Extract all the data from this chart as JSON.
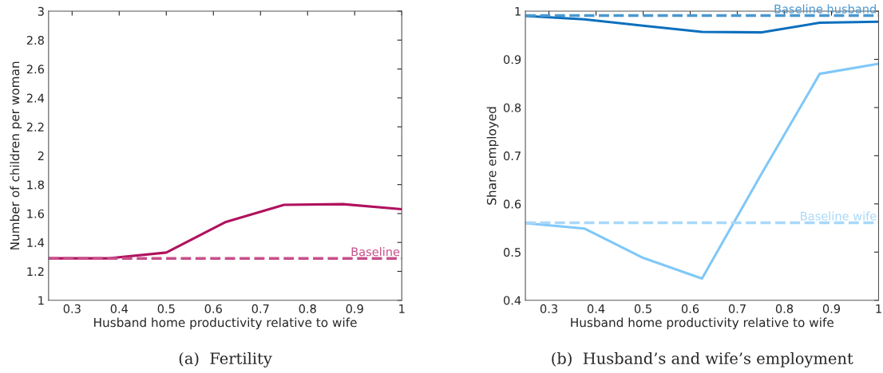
{
  "chart_data": [
    {
      "type": "line",
      "title": "(a)  Fertility",
      "xlabel": "Husband home productivity relative to wife",
      "ylabel": "Number of children per woman",
      "x": [
        0.25,
        0.375,
        0.5,
        0.625,
        0.75,
        0.875,
        1.0
      ],
      "series": [
        {
          "color": "#b0125e",
          "values": [
            1.29,
            1.29,
            1.33,
            1.54,
            1.66,
            1.665,
            1.63
          ]
        }
      ],
      "ref_lines": [
        {
          "axis": "y",
          "value": 1.29,
          "label": "Baseline",
          "color": "#c8508a",
          "line_style": "dashed"
        }
      ],
      "xlim": [
        0.25,
        1
      ],
      "xticks": [
        0.3,
        0.4,
        0.5,
        0.6,
        0.7,
        0.8,
        0.9,
        1
      ],
      "ylim": [
        1,
        3
      ],
      "yticks": [
        1,
        1.2,
        1.4,
        1.6,
        1.8,
        2,
        2.2,
        2.4,
        2.6,
        2.8,
        3
      ],
      "grid": false,
      "legend": false,
      "line_style": "solid",
      "marker": "none"
    },
    {
      "type": "line",
      "title": "(b)  Husband’s and wife’s employment",
      "xlabel": "Husband home productivity relative to wife",
      "ylabel": "Share employed",
      "x": [
        0.25,
        0.375,
        0.5,
        0.625,
        0.75,
        0.875,
        1.0
      ],
      "series": [
        {
          "color": "#0b6fbe",
          "values": [
            0.99,
            0.983,
            0.97,
            0.957,
            0.956,
            0.976,
            0.978
          ]
        },
        {
          "color": "#80c8f8",
          "values": [
            0.56,
            0.549,
            0.488,
            0.445,
            0.66,
            0.87,
            0.891
          ]
        }
      ],
      "ref_lines": [
        {
          "axis": "y",
          "value": 0.991,
          "label": "Baseline husband",
          "color": "#4a98d0",
          "line_style": "dashed"
        },
        {
          "axis": "y",
          "value": 0.561,
          "label": "Baseline wife",
          "color": "#a8d8fa",
          "line_style": "dashed"
        }
      ],
      "xlim": [
        0.25,
        1
      ],
      "xticks": [
        0.3,
        0.4,
        0.5,
        0.6,
        0.7,
        0.8,
        0.9,
        1
      ],
      "ylim": [
        0.4,
        1
      ],
      "yticks": [
        0.4,
        0.5,
        0.6,
        0.7,
        0.8,
        0.9,
        1
      ],
      "grid": false,
      "legend": false,
      "line_style": "solid",
      "marker": "none"
    }
  ]
}
